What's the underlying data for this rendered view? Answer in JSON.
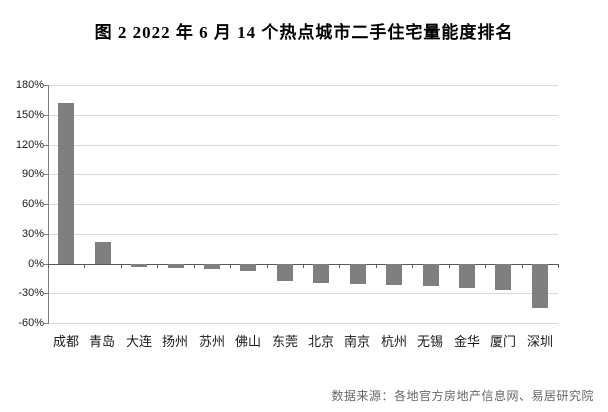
{
  "title": "图 2  2022 年 6 月 14 个热点城市二手住宅量能度排名",
  "footer": {
    "source": "数据来源：各地官方房地产信息网、易居研究院"
  },
  "chart_data": {
    "type": "bar",
    "title": "图 2  2022 年 6 月 14 个热点城市二手住宅量能度排名",
    "categories": [
      "成都",
      "青岛",
      "大连",
      "扬州",
      "苏州",
      "佛山",
      "东莞",
      "北京",
      "南京",
      "杭州",
      "无锡",
      "金华",
      "厦门",
      "深圳"
    ],
    "values": [
      162,
      22,
      -3,
      -4,
      -5,
      -7,
      -17,
      -19,
      -20,
      -21,
      -22,
      -24,
      -26,
      -44
    ],
    "unit": "%",
    "xlabel": "",
    "ylabel": "",
    "ylim": [
      -60,
      180
    ],
    "ytick_step": 30,
    "ytick_labels": [
      "180%",
      "150%",
      "120%",
      "90%",
      "60%",
      "30%",
      "0%",
      "-30%",
      "-60%"
    ],
    "grid": true,
    "legend": false,
    "colors": {
      "bar": "#7f7f7f",
      "gridline": "#d9d9d9",
      "axis": "#808080",
      "zero_line": "#595959",
      "text": "#1a1a1a"
    }
  }
}
